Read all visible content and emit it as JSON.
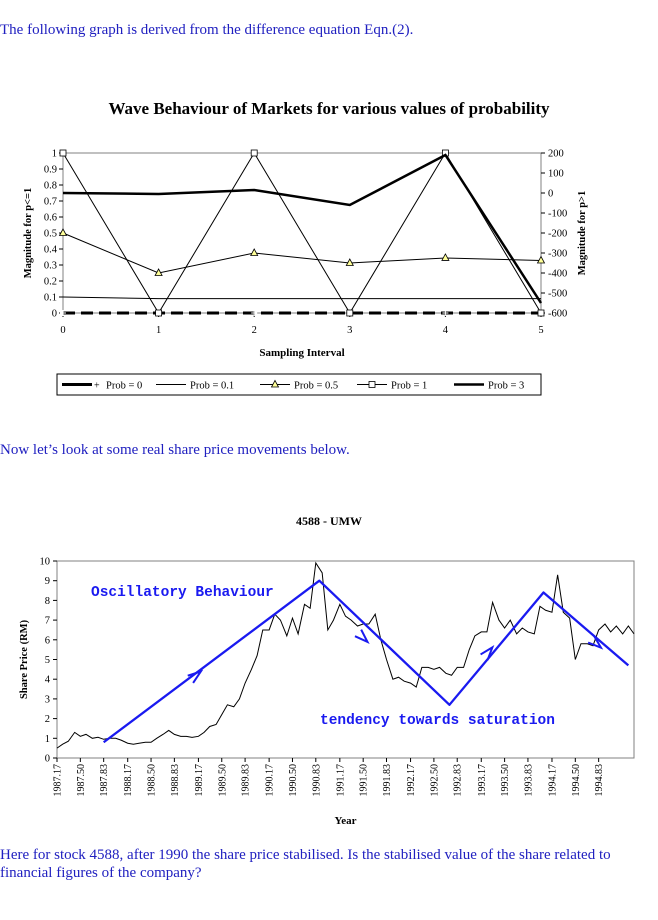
{
  "paragraphs": {
    "intro": "The following graph is derived from the difference equation Eqn.(2).",
    "middle": "Now let’s look at some real share price movements below.",
    "closing": "Here for stock 4588, after 1990 the share price stabilised. Is the stabilised value of the share related to financial figures of the company?"
  },
  "chart_data": [
    {
      "type": "line",
      "title": "Wave Behaviour of Markets for various values of probability",
      "xlabel": "Sampling Interval",
      "ylabel_left": "Magnitude for p<=1",
      "ylabel_right": "Magnitude for p>1",
      "x": [
        0,
        1,
        2,
        3,
        4,
        5
      ],
      "left_axis": {
        "min": 0,
        "max": 1,
        "ticks": [
          "0",
          "0.1",
          "0.2",
          "0.3",
          "0.4",
          "0.5",
          "0.6",
          "0.7",
          "0.8",
          "0.9",
          "1"
        ]
      },
      "right_axis": {
        "min": -600,
        "max": 200,
        "ticks": [
          "-600",
          "-500",
          "-400",
          "-300",
          "-200",
          "-100",
          "0",
          "100",
          "200"
        ]
      },
      "x_ticks": [
        "0",
        "1",
        "2",
        "3",
        "4",
        "5"
      ],
      "legend_placement": "bottom",
      "series": [
        {
          "name": "Prob = 0",
          "axis": "left",
          "style": "thick-dashed-plus",
          "values": [
            0,
            0,
            0,
            0,
            0,
            0
          ]
        },
        {
          "name": "Prob = 0.1",
          "axis": "left",
          "style": "thin",
          "values": [
            0.1,
            0.09,
            0.09,
            0.09,
            0.09,
            0.09
          ]
        },
        {
          "name": "Prob = 0.5",
          "axis": "left",
          "style": "thin-triangle",
          "values": [
            0.5,
            0.25,
            0.375,
            0.3125,
            0.344,
            0.328
          ]
        },
        {
          "name": "Prob = 1",
          "axis": "left",
          "style": "thin-square",
          "values": [
            1,
            0,
            1,
            0,
            1,
            0
          ]
        },
        {
          "name": "Prob = 3",
          "axis": "right",
          "style": "thick",
          "values": [
            0,
            -5,
            15,
            -60,
            190,
            -550
          ]
        }
      ]
    },
    {
      "type": "line",
      "title": "4588 - UMW",
      "xlabel": "Year",
      "ylabel": "Share Price (RM)",
      "ylim": [
        0,
        10
      ],
      "y_ticks": [
        "0",
        "1",
        "2",
        "3",
        "4",
        "5",
        "6",
        "7",
        "8",
        "9",
        "10"
      ],
      "x_ticks": [
        "1987.17",
        "1987.50",
        "1987.83",
        "1988.17",
        "1988.50",
        "1988.83",
        "1989.17",
        "1989.50",
        "1989.83",
        "1990.17",
        "1990.50",
        "1990.83",
        "1991.17",
        "1991.50",
        "1991.83",
        "1992.17",
        "1992.50",
        "1992.83",
        "1993.17",
        "1993.50",
        "1993.83",
        "1994.17",
        "1994.50",
        "1994.83"
      ],
      "xlim": [
        1987.17,
        1995.33
      ],
      "series": [
        {
          "values": [
            [
              1987.17,
              0.5
            ],
            [
              1987.25,
              0.7
            ],
            [
              1987.33,
              0.85
            ],
            [
              1987.42,
              1.3
            ],
            [
              1987.5,
              1.1
            ],
            [
              1987.58,
              1.2
            ],
            [
              1987.67,
              1.0
            ],
            [
              1987.75,
              1.05
            ],
            [
              1987.83,
              0.95
            ],
            [
              1987.92,
              1.0
            ],
            [
              1988.0,
              1.0
            ],
            [
              1988.08,
              0.9
            ],
            [
              1988.17,
              0.75
            ],
            [
              1988.25,
              0.7
            ],
            [
              1988.33,
              0.75
            ],
            [
              1988.42,
              0.8
            ],
            [
              1988.5,
              0.8
            ],
            [
              1988.58,
              1.0
            ],
            [
              1988.67,
              1.2
            ],
            [
              1988.75,
              1.4
            ],
            [
              1988.83,
              1.2
            ],
            [
              1988.92,
              1.1
            ],
            [
              1989.0,
              1.1
            ],
            [
              1989.08,
              1.05
            ],
            [
              1989.17,
              1.1
            ],
            [
              1989.25,
              1.3
            ],
            [
              1989.33,
              1.6
            ],
            [
              1989.42,
              1.7
            ],
            [
              1989.5,
              2.2
            ],
            [
              1989.58,
              2.7
            ],
            [
              1989.67,
              2.6
            ],
            [
              1989.75,
              3.0
            ],
            [
              1989.83,
              3.8
            ],
            [
              1989.92,
              4.5
            ],
            [
              1990.0,
              5.2
            ],
            [
              1990.08,
              6.5
            ],
            [
              1990.17,
              6.5
            ],
            [
              1990.25,
              7.3
            ],
            [
              1990.33,
              7.0
            ],
            [
              1990.42,
              6.2
            ],
            [
              1990.5,
              7.1
            ],
            [
              1990.58,
              6.3
            ],
            [
              1990.67,
              7.8
            ],
            [
              1990.75,
              7.6
            ],
            [
              1990.83,
              9.9
            ],
            [
              1990.92,
              9.4
            ],
            [
              1991.0,
              6.5
            ],
            [
              1991.08,
              7.0
            ],
            [
              1991.17,
              7.8
            ],
            [
              1991.25,
              7.2
            ],
            [
              1991.33,
              7.0
            ],
            [
              1991.42,
              6.7
            ],
            [
              1991.5,
              6.8
            ],
            [
              1991.58,
              6.8
            ],
            [
              1991.67,
              7.3
            ],
            [
              1991.75,
              6.0
            ],
            [
              1991.83,
              5.0
            ],
            [
              1991.92,
              4.0
            ],
            [
              1992.0,
              4.1
            ],
            [
              1992.08,
              3.9
            ],
            [
              1992.17,
              3.8
            ],
            [
              1992.25,
              3.6
            ],
            [
              1992.33,
              4.6
            ],
            [
              1992.42,
              4.6
            ],
            [
              1992.5,
              4.5
            ],
            [
              1992.58,
              4.6
            ],
            [
              1992.67,
              4.3
            ],
            [
              1992.75,
              4.2
            ],
            [
              1992.83,
              4.6
            ],
            [
              1992.92,
              4.6
            ],
            [
              1993.0,
              5.5
            ],
            [
              1993.08,
              6.2
            ],
            [
              1993.17,
              6.4
            ],
            [
              1993.25,
              6.4
            ],
            [
              1993.33,
              7.9
            ],
            [
              1993.42,
              7.0
            ],
            [
              1993.5,
              6.6
            ],
            [
              1993.58,
              7.0
            ],
            [
              1993.67,
              6.3
            ],
            [
              1993.75,
              6.6
            ],
            [
              1993.83,
              6.4
            ],
            [
              1993.92,
              6.3
            ],
            [
              1994.0,
              7.7
            ],
            [
              1994.08,
              7.5
            ],
            [
              1994.17,
              7.4
            ],
            [
              1994.25,
              9.3
            ],
            [
              1994.33,
              7.4
            ],
            [
              1994.42,
              7.1
            ],
            [
              1994.5,
              5.0
            ],
            [
              1994.58,
              5.8
            ],
            [
              1994.67,
              5.8
            ],
            [
              1994.75,
              5.7
            ],
            [
              1994.83,
              6.5
            ],
            [
              1994.92,
              6.8
            ],
            [
              1995.0,
              6.4
            ],
            [
              1995.08,
              6.7
            ],
            [
              1995.17,
              6.3
            ],
            [
              1995.25,
              6.7
            ],
            [
              1995.33,
              6.3
            ]
          ]
        }
      ],
      "annotations": {
        "oscillatory": "Oscillatory Behaviour",
        "saturation": "tendency towards saturation",
        "trend_path": [
          [
            1987.83,
            0.8
          ],
          [
            1990.88,
            9.0
          ],
          [
            1992.72,
            2.7
          ],
          [
            1994.05,
            8.4
          ],
          [
            1995.25,
            4.7
          ]
        ],
        "arrow_heads": [
          [
            1989.17,
            4.3
          ],
          [
            1991.53,
            6.0
          ],
          [
            1993.3,
            5.5
          ],
          [
            1994.83,
            5.7
          ]
        ],
        "color": "#1a1af0"
      }
    }
  ]
}
